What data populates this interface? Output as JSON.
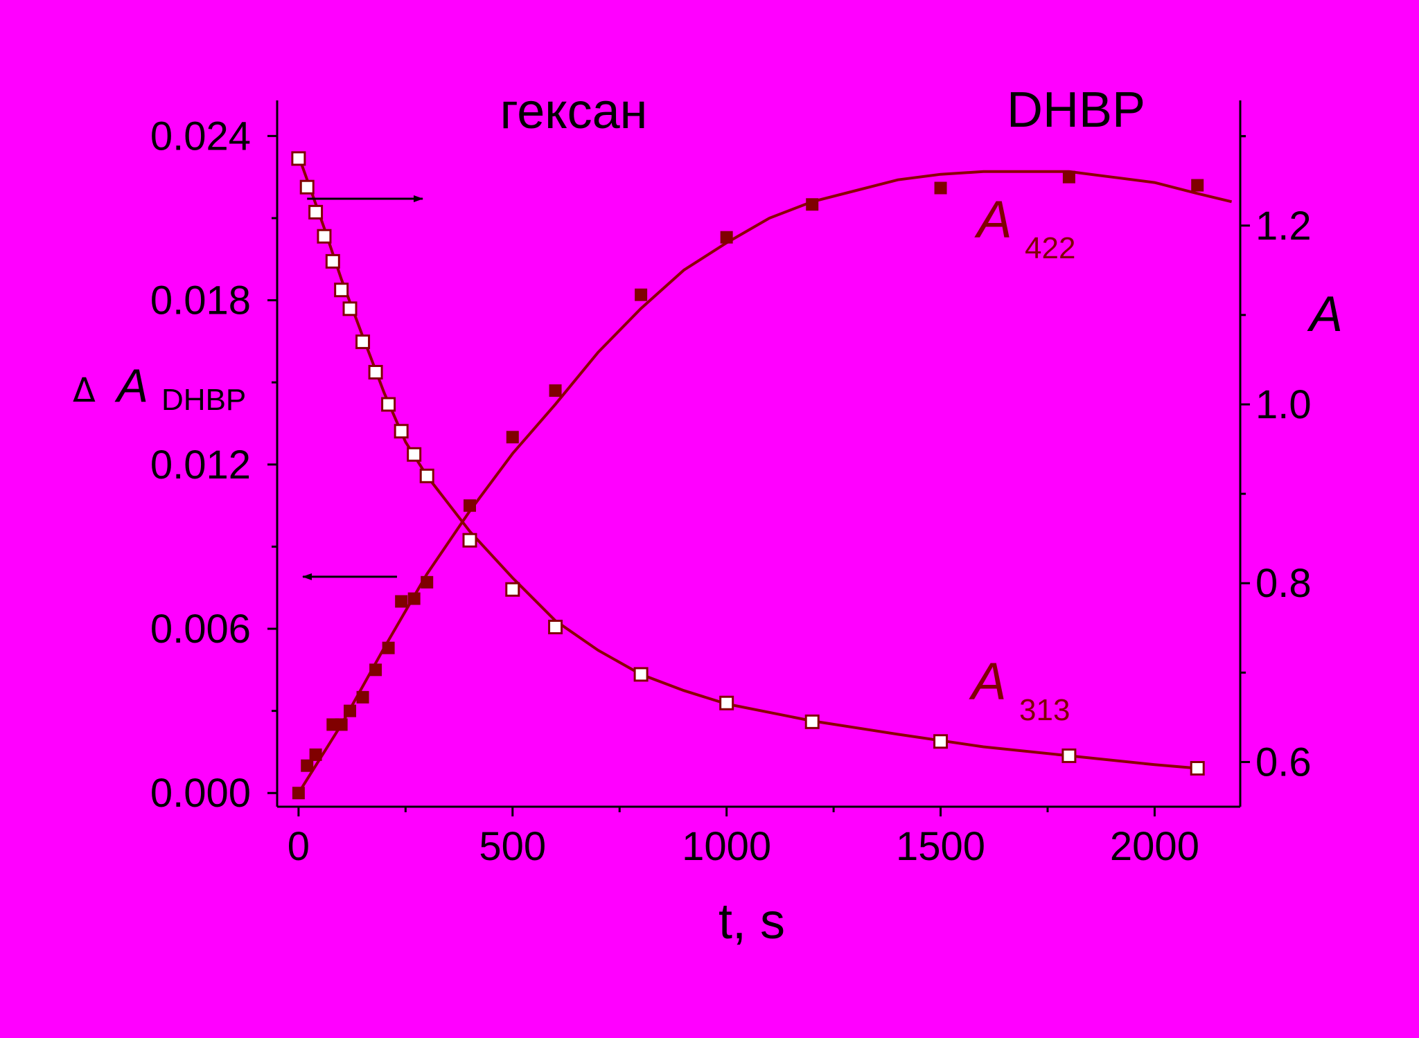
{
  "colors": {
    "background": "#ff00ff",
    "axis": "#000000",
    "series_dark": "#800000",
    "series_open_fill": "#ffffff",
    "curve": "#8b0000"
  },
  "chart_data": {
    "type": "scatter",
    "title": "",
    "annotations": {
      "solvent": "гексан",
      "compound": "DHBP"
    },
    "x_axis": {
      "label": "t, s",
      "range": [
        -50,
        2200
      ],
      "ticks": [
        0,
        500,
        1000,
        1500,
        2000
      ],
      "tick_labels": [
        "0",
        "500",
        "1000",
        "1500",
        "2000"
      ]
    },
    "y_left": {
      "label_prefix": "Δ",
      "label_main": "A",
      "label_sub": "DHBP",
      "range": [
        -0.0005,
        0.0253
      ],
      "ticks": [
        0.0,
        0.006,
        0.012,
        0.018,
        0.024
      ],
      "tick_labels": [
        "0.000",
        "0.006",
        "0.012",
        "0.018",
        "0.024"
      ]
    },
    "y_right": {
      "label": "A",
      "range": [
        0.55,
        1.34
      ],
      "ticks": [
        0.6,
        0.8,
        1.0,
        1.2
      ],
      "tick_labels": [
        "0.6",
        "0.8",
        "1.0",
        "1.2"
      ]
    },
    "series": [
      {
        "label_main": "A",
        "label_sub": "422",
        "axis": "left",
        "marker": "filled-square",
        "x": [
          0,
          20,
          40,
          80,
          100,
          120,
          150,
          180,
          210,
          240,
          270,
          300,
          400,
          500,
          600,
          800,
          1000,
          1200,
          1500,
          1800,
          2100
        ],
        "y": [
          0.0,
          0.001,
          0.0014,
          0.0025,
          0.0025,
          0.003,
          0.0035,
          0.0045,
          0.0053,
          0.007,
          0.0071,
          0.0077,
          0.0105,
          0.013,
          0.0147,
          0.0182,
          0.0203,
          0.0215,
          0.0221,
          0.0225,
          0.0222
        ],
        "fit_x": [
          0,
          100,
          200,
          300,
          400,
          500,
          600,
          700,
          800,
          900,
          1000,
          1100,
          1200,
          1300,
          1400,
          1500,
          1600,
          1700,
          1800,
          1900,
          2000,
          2100,
          2180
        ],
        "fit_y": [
          0.0,
          0.0025,
          0.0053,
          0.008,
          0.0103,
          0.0124,
          0.0142,
          0.0161,
          0.0177,
          0.0191,
          0.0201,
          0.021,
          0.0216,
          0.022,
          0.0224,
          0.0226,
          0.0227,
          0.0227,
          0.0227,
          0.0225,
          0.0223,
          0.0219,
          0.0216
        ]
      },
      {
        "label_main": "A",
        "label_sub": "313",
        "axis": "right",
        "marker": "open-square",
        "x": [
          0,
          20,
          40,
          60,
          80,
          100,
          120,
          150,
          180,
          210,
          240,
          270,
          300,
          400,
          500,
          600,
          800,
          1000,
          1200,
          1500,
          1800,
          2100
        ],
        "y": [
          1.275,
          1.243,
          1.215,
          1.188,
          1.16,
          1.128,
          1.107,
          1.07,
          1.036,
          1.0,
          0.97,
          0.944,
          0.92,
          0.848,
          0.793,
          0.751,
          0.698,
          0.666,
          0.645,
          0.623,
          0.607,
          0.593
        ],
        "fit_x": [
          0,
          30,
          60,
          100,
          150,
          200,
          250,
          300,
          400,
          500,
          600,
          700,
          800,
          900,
          1000,
          1200,
          1400,
          1600,
          1800,
          2000,
          2100
        ],
        "fit_y": [
          1.278,
          1.238,
          1.197,
          1.14,
          1.076,
          1.013,
          0.958,
          0.92,
          0.858,
          0.806,
          0.758,
          0.725,
          0.698,
          0.68,
          0.665,
          0.646,
          0.631,
          0.617,
          0.607,
          0.597,
          0.593
        ]
      }
    ],
    "arrows": [
      {
        "x_from": 20,
        "x_to": 290,
        "y_right": 1.23,
        "direction": "right"
      },
      {
        "x_from": 230,
        "x_to": 10,
        "y_left": 0.0079,
        "direction": "left"
      }
    ]
  }
}
